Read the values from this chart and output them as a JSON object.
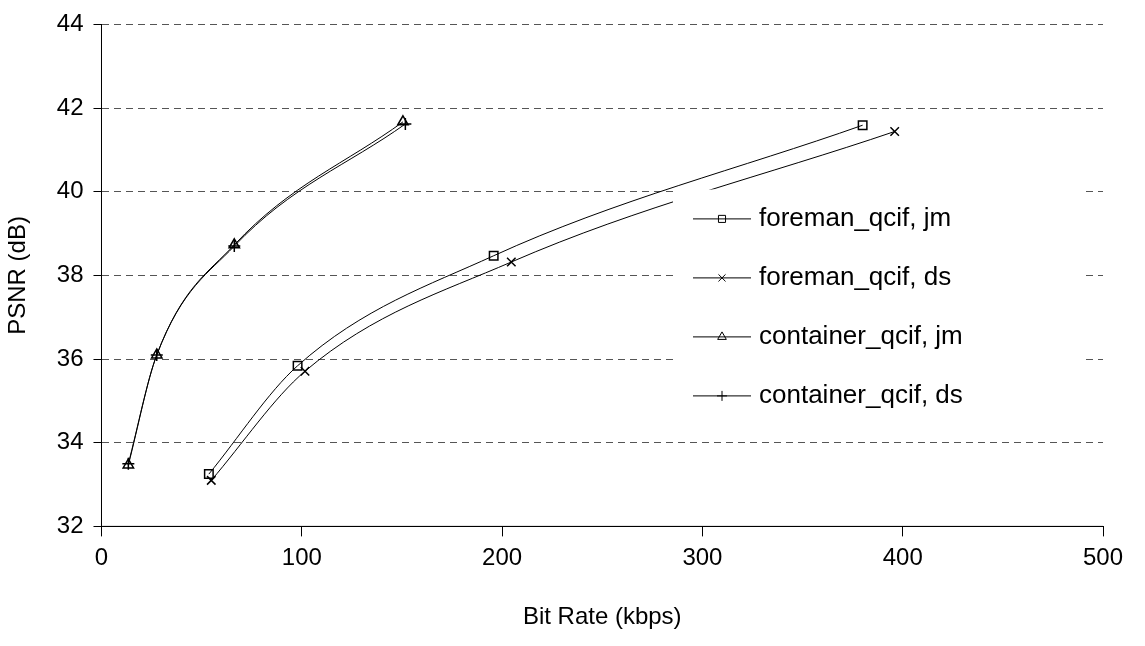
{
  "chart_data": {
    "type": "line",
    "xlabel": "Bit Rate (kbps)",
    "ylabel": "PSNR (dB)",
    "xlim": [
      0,
      500
    ],
    "xticks": [
      0,
      100,
      200,
      300,
      400,
      500
    ],
    "ylim": [
      32,
      44
    ],
    "yticks": [
      32,
      34,
      36,
      38,
      40,
      42,
      44
    ],
    "grid": "y",
    "legend": "right",
    "line_style": "solid",
    "series": [
      {
        "name": "foreman_qcif, jm",
        "color": "#000000",
        "marker": "square",
        "x": [
          53.6,
          97.9,
          195.8,
          380
        ],
        "values": [
          33.25,
          35.84,
          38.47,
          41.59
        ]
      },
      {
        "name": "foreman_qcif, ds",
        "color": "#000000",
        "marker": "cross",
        "x": [
          54.8,
          101.6,
          204.6,
          396
        ],
        "values": [
          33.1,
          35.71,
          38.32,
          41.44
        ]
      },
      {
        "name": "container_qcif, jm",
        "color": "#000000",
        "marker": "triangle",
        "x": [
          13.4,
          27.6,
          66.3,
          150.5
        ],
        "values": [
          33.47,
          36.1,
          38.73,
          41.67
        ]
      },
      {
        "name": "container_qcif, ds",
        "color": "#000000",
        "marker": "plus",
        "x": [
          13.4,
          27.6,
          66.3,
          151.7
        ],
        "values": [
          33.5,
          36.1,
          38.7,
          41.62
        ]
      }
    ]
  }
}
